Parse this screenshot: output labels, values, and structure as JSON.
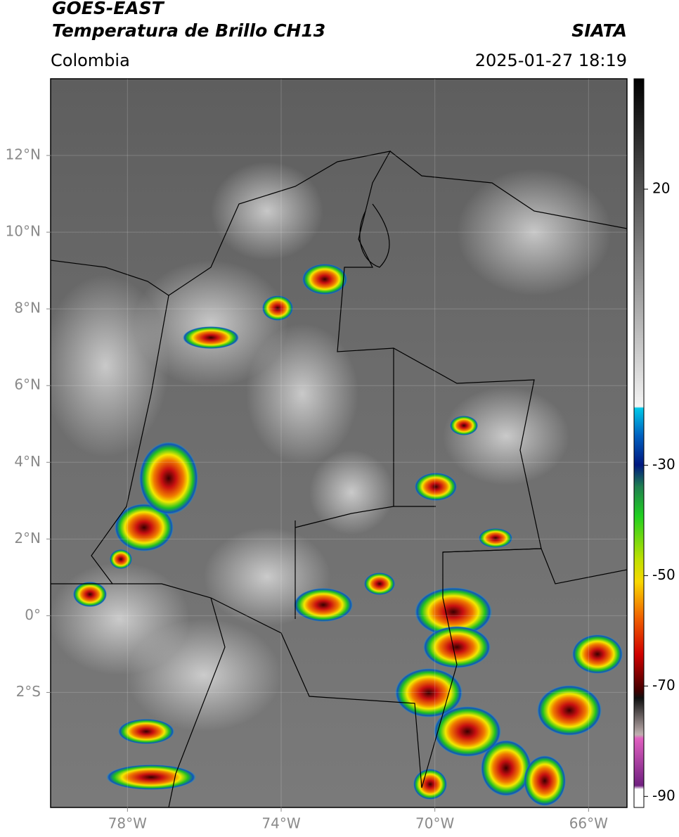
{
  "header": {
    "title": "GOES-EAST",
    "subtitle": "Temperatura de Brillo CH13",
    "region": "Colombia",
    "source": "SIATA",
    "datetime": "2025-01-27 18:19"
  },
  "map": {
    "xlim": [
      -80,
      -65
    ],
    "ylim": [
      -5,
      14
    ],
    "xticks": [
      {
        "value": -78,
        "label": "78°W"
      },
      {
        "value": -74,
        "label": "74°W"
      },
      {
        "value": -70,
        "label": "70°W"
      },
      {
        "value": -66,
        "label": "66°W"
      }
    ],
    "yticks": [
      {
        "value": 12,
        "label": "12°N"
      },
      {
        "value": 10,
        "label": "10°N"
      },
      {
        "value": 8,
        "label": "8°N"
      },
      {
        "value": 6,
        "label": "6°N"
      },
      {
        "value": 4,
        "label": "4°N"
      },
      {
        "value": 2,
        "label": "2°N"
      },
      {
        "value": 0,
        "label": "0°"
      },
      {
        "value": -2,
        "label": "2°S"
      }
    ],
    "grid": true
  },
  "colorbar": {
    "clim": [
      -92,
      40
    ],
    "ticks": [
      20,
      -30,
      -50,
      -70,
      -90
    ]
  }
}
